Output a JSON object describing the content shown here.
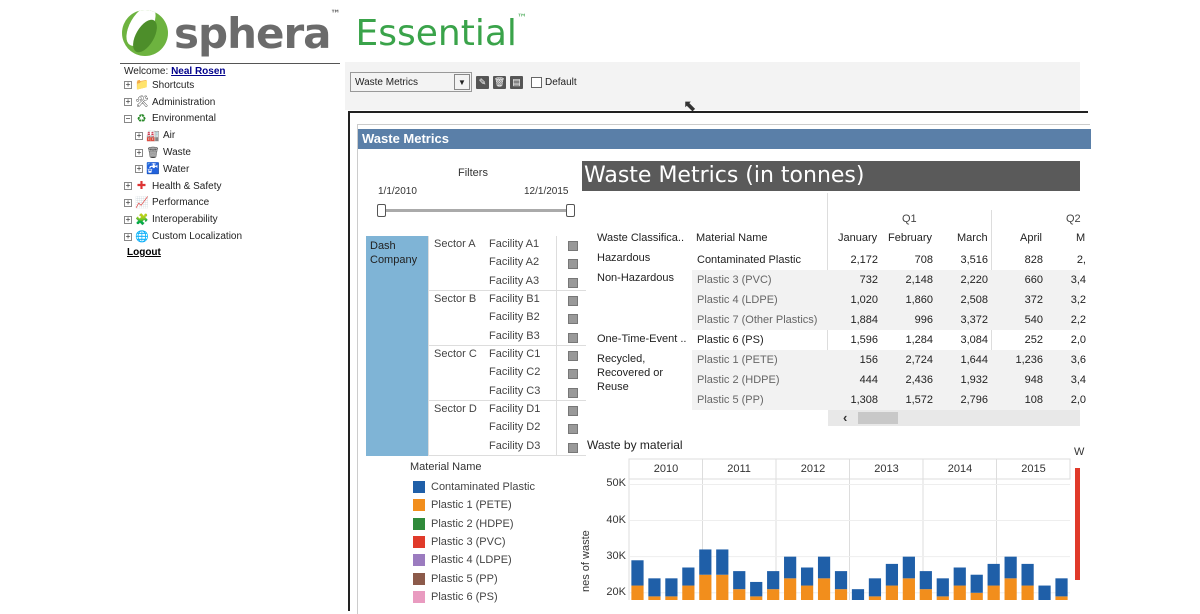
{
  "logo": {
    "brand": "sphera",
    "tm": "™",
    "product": "Essential",
    "product_tm": "™"
  },
  "sidebar": {
    "welcome_label": "Welcome:",
    "user_name": "Neal Rosen",
    "items": [
      {
        "label": "Shortcuts",
        "expander": "+",
        "icon": "folder-icon"
      },
      {
        "label": "Administration",
        "expander": "+",
        "icon": "tools-icon"
      },
      {
        "label": "Environmental",
        "expander": "−",
        "icon": "recycle-icon"
      },
      {
        "label": "Air",
        "expander": "+",
        "icon": "factory-icon",
        "level": 2
      },
      {
        "label": "Waste",
        "expander": "+",
        "icon": "trash-icon",
        "level": 2
      },
      {
        "label": "Water",
        "expander": "+",
        "icon": "faucet-icon",
        "level": 2
      },
      {
        "label": "Health & Safety",
        "expander": "+",
        "icon": "first-aid-icon"
      },
      {
        "label": "Performance",
        "expander": "+",
        "icon": "chart-icon"
      },
      {
        "label": "Interoperability",
        "expander": "+",
        "icon": "puzzle-icon"
      },
      {
        "label": "Custom Localization",
        "expander": "+",
        "icon": "globe-icon"
      }
    ],
    "logout_label": "Logout"
  },
  "toolbar": {
    "selected": "Waste Metrics",
    "default_label": "Default"
  },
  "dashboard": {
    "title": "Waste Metrics",
    "filters_label": "Filters",
    "range_start": "1/1/2010",
    "range_end": "12/1/2015",
    "company": "Dash Company",
    "sectors": [
      {
        "name": "Sector A",
        "facilities": [
          "Facility A1",
          "Facility A2",
          "Facility A3"
        ]
      },
      {
        "name": "Sector B",
        "facilities": [
          "Facility B1",
          "Facility B2",
          "Facility B3"
        ]
      },
      {
        "name": "Sector C",
        "facilities": [
          "Facility C1",
          "Facility C2",
          "Facility C3"
        ]
      },
      {
        "name": "Sector D",
        "facilities": [
          "Facility D1",
          "Facility D2",
          "Facility D3"
        ]
      }
    ],
    "material_legend_title": "Material Name",
    "materials": [
      {
        "name": "Contaminated Plastic",
        "color": "#1f5fa8"
      },
      {
        "name": "Plastic 1 (PETE)",
        "color": "#f28e1c"
      },
      {
        "name": "Plastic 2 (HDPE)",
        "color": "#2f8a3a"
      },
      {
        "name": "Plastic 3 (PVC)",
        "color": "#e03a2a"
      },
      {
        "name": "Plastic 4 (LDPE)",
        "color": "#9b7bbf"
      },
      {
        "name": "Plastic 5 (PP)",
        "color": "#8c5a4a"
      },
      {
        "name": "Plastic 6 (PS)",
        "color": "#e99bc0"
      }
    ]
  },
  "table": {
    "title": "Waste Metrics (in tonnes)",
    "quarters": [
      "Q1",
      "Q2"
    ],
    "col_class": "Waste Classifica..",
    "col_material": "Material Name",
    "months": [
      "January",
      "February",
      "March",
      "April",
      "M"
    ],
    "groups": [
      "Hazardous",
      "Non-Hazardous",
      "One-Time-Event ..",
      "Recycled, Recovered or Reuse"
    ],
    "rows": [
      {
        "material": "Contaminated Plastic",
        "v": [
          "2,172",
          "708",
          "3,516",
          "828",
          "2,"
        ]
      },
      {
        "material": "Plastic 3 (PVC)",
        "v": [
          "732",
          "2,148",
          "2,220",
          "660",
          "3,4"
        ]
      },
      {
        "material": "Plastic 4 (LDPE)",
        "v": [
          "1,020",
          "1,860",
          "2,508",
          "372",
          "3,2"
        ]
      },
      {
        "material": "Plastic 7 (Other Plastics)",
        "v": [
          "1,884",
          "996",
          "3,372",
          "540",
          "2,2"
        ]
      },
      {
        "material": "Plastic 6 (PS)",
        "v": [
          "1,596",
          "1,284",
          "3,084",
          "252",
          "2,0"
        ]
      },
      {
        "material": "Plastic 1 (PETE)",
        "v": [
          "156",
          "2,724",
          "1,644",
          "1,236",
          "3,6"
        ]
      },
      {
        "material": "Plastic 2 (HDPE)",
        "v": [
          "444",
          "2,436",
          "1,932",
          "948",
          "3,4"
        ]
      },
      {
        "material": "Plastic 5 (PP)",
        "v": [
          "1,308",
          "1,572",
          "2,796",
          "108",
          "2,0"
        ]
      }
    ]
  },
  "chart_data": {
    "type": "bar",
    "title": "Waste by material",
    "ylabel": "nes of waste",
    "years": [
      "2010",
      "2011",
      "2012",
      "2013",
      "2014",
      "2015"
    ],
    "yticks": [
      "50K",
      "40K",
      "30K",
      "20K"
    ],
    "ylim": [
      18000,
      54000
    ],
    "visible_floor": 18000,
    "colors": [
      "#8c5a4a",
      "#9b7bbf",
      "#e03a2a",
      "#2f8a3a",
      "#f28e1c",
      "#1f5fa8"
    ],
    "stacks": [
      [
        2000,
        3000,
        6000,
        5000,
        6000,
        7000
      ],
      [
        2000,
        3000,
        5000,
        4000,
        5000,
        5000
      ],
      [
        2000,
        3000,
        5000,
        4000,
        5000,
        5000
      ],
      [
        2000,
        3000,
        6000,
        5000,
        6000,
        5000
      ],
      [
        2000,
        3000,
        7000,
        6000,
        7000,
        7000
      ],
      [
        2000,
        3000,
        7000,
        6000,
        7000,
        7000
      ],
      [
        2000,
        3000,
        6000,
        5000,
        5000,
        5000
      ],
      [
        2000,
        3000,
        5000,
        4000,
        5000,
        4000
      ],
      [
        2000,
        3000,
        6000,
        5000,
        5000,
        5000
      ],
      [
        2000,
        3000,
        7000,
        6000,
        6000,
        6000
      ],
      [
        2000,
        3000,
        6000,
        5000,
        6000,
        5000
      ],
      [
        2000,
        3000,
        7000,
        6000,
        6000,
        6000
      ],
      [
        2000,
        3000,
        6000,
        5000,
        5000,
        5000
      ],
      [
        2000,
        3000,
        4000,
        4000,
        4000,
        4000
      ],
      [
        2000,
        3000,
        5000,
        4000,
        5000,
        5000
      ],
      [
        2000,
        3000,
        6000,
        5000,
        6000,
        6000
      ],
      [
        2000,
        3000,
        7000,
        6000,
        6000,
        6000
      ],
      [
        2000,
        3000,
        6000,
        5000,
        5000,
        5000
      ],
      [
        2000,
        3000,
        5000,
        4000,
        5000,
        5000
      ],
      [
        2000,
        3000,
        6000,
        5000,
        6000,
        5000
      ],
      [
        2000,
        3000,
        5000,
        5000,
        5000,
        5000
      ],
      [
        2000,
        3000,
        6000,
        5000,
        6000,
        6000
      ],
      [
        2000,
        3000,
        7000,
        6000,
        6000,
        6000
      ],
      [
        2000,
        3000,
        6000,
        5000,
        6000,
        6000
      ],
      [
        2000,
        3000,
        5000,
        4000,
        4000,
        4000
      ],
      [
        2000,
        3000,
        5000,
        4000,
        5000,
        5000
      ]
    ]
  }
}
